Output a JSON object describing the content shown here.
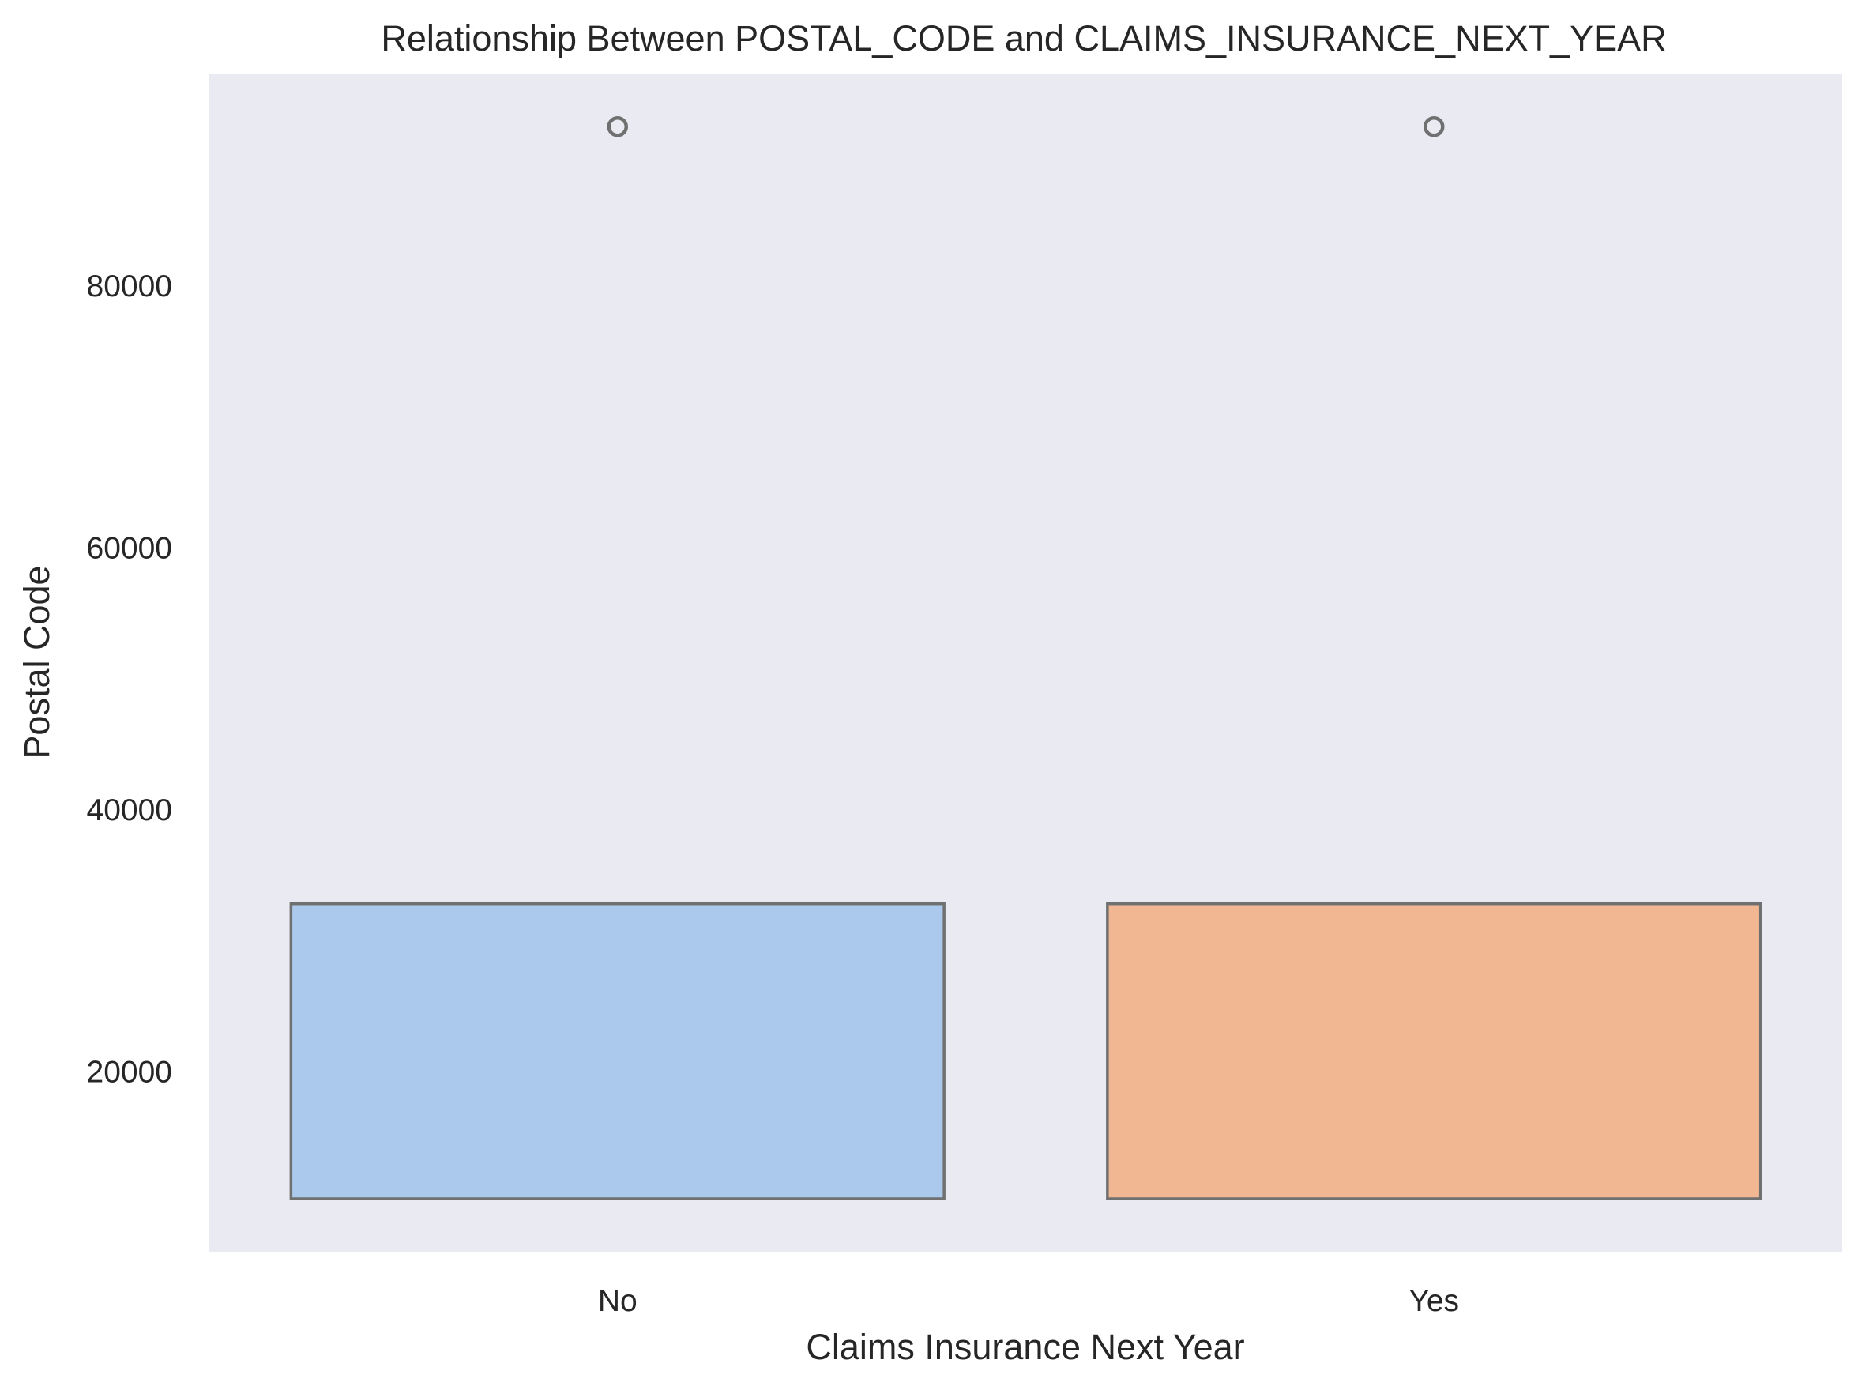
{
  "chart_data": {
    "type": "box",
    "title": "Relationship Between POSTAL_CODE and CLAIMS_INSURANCE_NEXT_YEAR",
    "xlabel": "Claims Insurance Next Year",
    "ylabel": "Postal Code",
    "categories": [
      "No",
      "Yes"
    ],
    "boxes": [
      {
        "category": "No",
        "whisker_low": 10238,
        "q1": 10238,
        "median": 10238,
        "q3": 32765,
        "whisker_high": 32765,
        "outliers": [
          92101
        ],
        "color": "#abc9ed"
      },
      {
        "category": "Yes",
        "whisker_low": 10238,
        "q1": 10238,
        "median": 10238,
        "q3": 32765,
        "whisker_high": 32765,
        "outliers": [
          92101
        ],
        "color": "#f1b792"
      }
    ],
    "yticks": [
      20000,
      40000,
      60000,
      80000
    ],
    "ytick_labels": [
      "20000",
      "40000",
      "60000",
      "80000"
    ],
    "ylim": [
      6200,
      96100
    ],
    "grid": false,
    "plot_background": "#eaeaf2",
    "edge_color": "#707070",
    "legend": "none"
  }
}
